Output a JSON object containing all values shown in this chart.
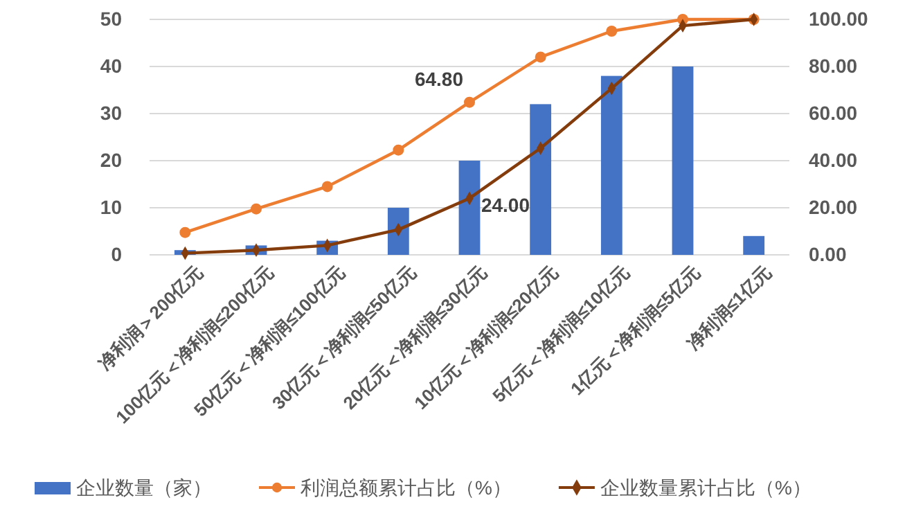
{
  "chart_data": {
    "type": "bar",
    "categories": [
      "净利润＞200亿元",
      "100亿元＜净利润≤200亿元",
      "50亿元＜净利润≤100亿元",
      "30亿元＜净利润≤50亿元",
      "20亿元＜净利润≤30亿元",
      "10亿元＜净利润≤20亿元",
      "5亿元＜净利润≤10亿元",
      "1亿元＜净利润≤5亿元",
      "净利润≤1亿元"
    ],
    "series": [
      {
        "name": "企业数量（家）",
        "color": "#4472c4",
        "values": [
          1,
          2,
          3,
          10,
          20,
          32,
          38,
          40,
          4
        ]
      },
      {
        "name": "利润总额累计占比（%）",
        "type": "line",
        "axis": "y2",
        "color": "#ed7d31",
        "marker": "circle",
        "values": [
          9.5,
          19.5,
          29,
          44.5,
          64.8,
          84,
          95,
          100,
          100
        ],
        "value_labels": [
          null,
          null,
          null,
          null,
          "64.80",
          null,
          null,
          null,
          null
        ]
      },
      {
        "name": "企业数量累计占比（%）",
        "type": "line",
        "axis": "y2",
        "color": "#843c0c",
        "marker": "diamond",
        "values": [
          0.7,
          2,
          4,
          10.7,
          24,
          45.3,
          70.7,
          97.3,
          100
        ],
        "value_labels": [
          null,
          null,
          null,
          null,
          "24.00",
          null,
          null,
          null,
          null
        ]
      }
    ],
    "ylim": [
      0,
      50
    ],
    "yticks": [
      0,
      10,
      20,
      30,
      40,
      50
    ],
    "y2lim": [
      0,
      100
    ],
    "y2ticks": [
      {
        "value": 0,
        "label": "0.00"
      },
      {
        "value": 20,
        "label": "20.00"
      },
      {
        "value": 40,
        "label": "40.00"
      },
      {
        "value": 60,
        "label": "60.00"
      },
      {
        "value": 80,
        "label": "80.00"
      },
      {
        "value": 100,
        "label": "100.00"
      }
    ],
    "grid": "y",
    "legend": "bottom"
  }
}
